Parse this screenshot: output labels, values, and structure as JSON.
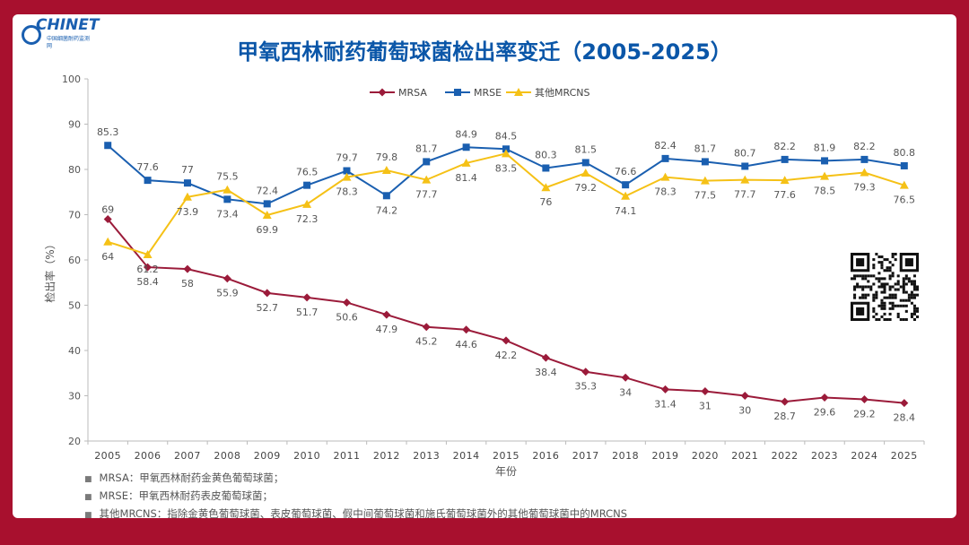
{
  "title": "甲氧西林耐药葡萄球菌检出率变迁（2005-2025）",
  "logo": {
    "name": "CHINET",
    "sub": "中国细菌耐药监测网"
  },
  "chart_data": {
    "type": "line",
    "title": "甲氧西林耐药葡萄球菌检出率变迁（2005-2025）",
    "xlabel": "年份",
    "ylabel": "检出率（%）",
    "ylim": [
      20,
      100
    ],
    "yticks": [
      20,
      30,
      40,
      50,
      60,
      70,
      80,
      90,
      100
    ],
    "categories": [
      "2005",
      "2006",
      "2007",
      "2008",
      "2009",
      "2010",
      "2011",
      "2012",
      "2013",
      "2014",
      "2015",
      "2016",
      "2017",
      "2018",
      "2019",
      "2020",
      "2021",
      "2022",
      "2023",
      "2024",
      "2025"
    ],
    "series": [
      {
        "name": "MRSA",
        "color": "#9b1b3a",
        "marker": "diamond",
        "values": [
          69,
          58.4,
          58,
          55.9,
          52.7,
          51.7,
          50.6,
          47.9,
          45.2,
          44.6,
          42.2,
          38.4,
          35.3,
          34,
          31.4,
          31,
          30,
          28.7,
          29.6,
          29.2,
          28.4
        ]
      },
      {
        "name": "MRSE",
        "color": "#1a5fb0",
        "marker": "square",
        "values": [
          85.3,
          77.6,
          77,
          73.4,
          72.4,
          76.5,
          79.7,
          74.2,
          81.7,
          84.9,
          84.5,
          80.3,
          81.5,
          76.6,
          82.4,
          81.7,
          80.7,
          82.2,
          81.9,
          82.2,
          80.8
        ]
      },
      {
        "name": "其他MRCNS",
        "color": "#f5c116",
        "marker": "triangle",
        "values": [
          64,
          61.2,
          73.9,
          75.5,
          69.9,
          72.3,
          78.3,
          79.8,
          77.7,
          81.4,
          83.5,
          76,
          79.2,
          74.1,
          78.3,
          77.5,
          77.7,
          77.6,
          78.5,
          79.3,
          76.5
        ]
      }
    ],
    "legend": "top-center",
    "grid": false
  },
  "notes": [
    "MRSA：甲氧西林耐药金黄色葡萄球菌；",
    "MRSE：甲氧西林耐药表皮葡萄球菌；",
    "其他MRCNS：指除金黄色葡萄球菌、表皮葡萄球菌、假中间葡萄球菌和施氏葡萄球菌外的其他葡萄球菌中的MRCNS"
  ]
}
